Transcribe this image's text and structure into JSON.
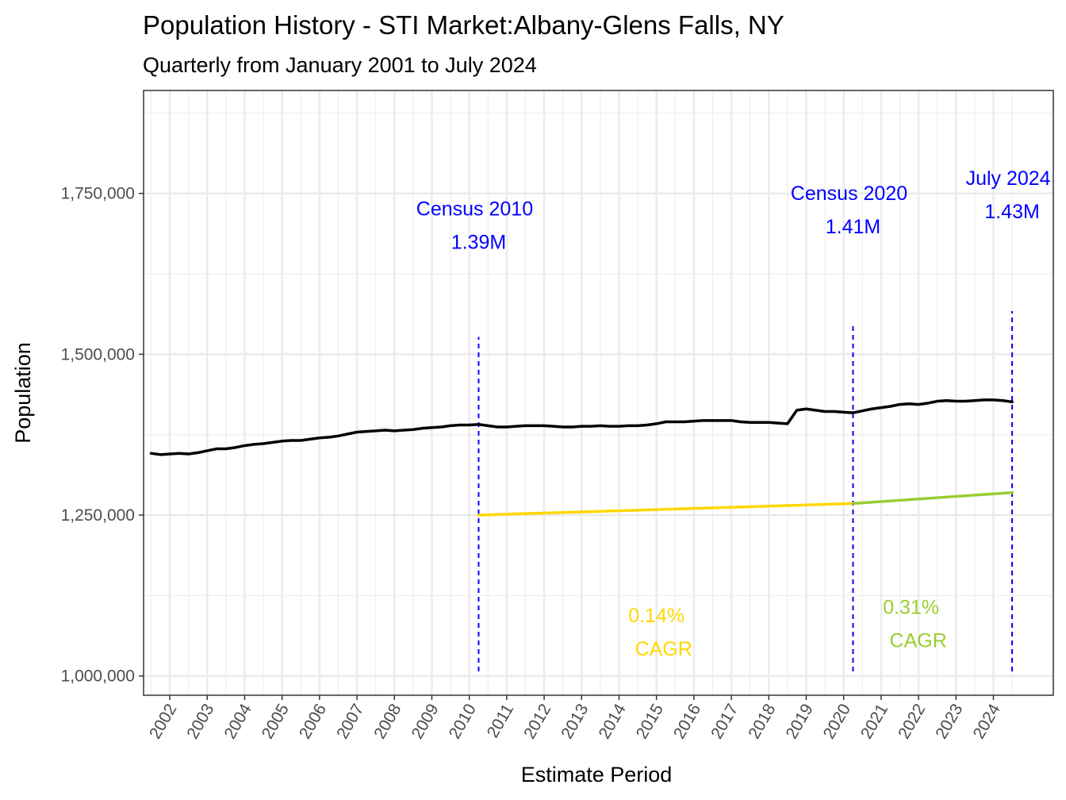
{
  "chart_data": {
    "type": "line",
    "title": "Population History - STI Market:Albany-Glens Falls, NY",
    "subtitle": "Quarterly from January 2001 to July 2024",
    "xlabel": "Estimate Period",
    "ylabel": "Population",
    "xlim": [
      2001.3,
      2025.6
    ],
    "ylim": [
      970000,
      1910000
    ],
    "x_ticks": [
      2002,
      2003,
      2004,
      2005,
      2006,
      2007,
      2008,
      2009,
      2010,
      2011,
      2012,
      2013,
      2014,
      2015,
      2016,
      2017,
      2018,
      2019,
      2020,
      2021,
      2022,
      2023,
      2024
    ],
    "x_tick_labels": [
      "2002",
      "2003",
      "2004",
      "2005",
      "2006",
      "2007",
      "2008",
      "2009",
      "2010",
      "2011",
      "2012",
      "2013",
      "2014",
      "2015",
      "2016",
      "2017",
      "2018",
      "2019",
      "2020",
      "2021",
      "2022",
      "2023",
      "2024"
    ],
    "y_ticks": [
      1000000,
      1250000,
      1500000,
      1750000
    ],
    "y_tick_labels": [
      "1,000,000",
      "1,250,000",
      "1,500,000",
      "1,750,000"
    ],
    "grid": true,
    "colors": {
      "population": "#000000",
      "census": "#0000ff",
      "cagr_2010_2020": "#ffd700",
      "cagr_2020_2024": "#9acd32"
    },
    "series": [
      {
        "x": [
          2001.5,
          2001.75,
          2002.0,
          2002.25,
          2002.5,
          2002.75,
          2003.0,
          2003.25,
          2003.5,
          2003.75,
          2004.0,
          2004.25,
          2004.5,
          2004.75,
          2005.0,
          2005.25,
          2005.5,
          2005.75,
          2006.0,
          2006.25,
          2006.5,
          2006.75,
          2007.0,
          2007.25,
          2007.5,
          2007.75,
          2008.0,
          2008.25,
          2008.5,
          2008.75,
          2009.0,
          2009.25,
          2009.5,
          2009.75,
          2010.0,
          2010.25,
          2010.5,
          2010.75,
          2011.0,
          2011.25,
          2011.5,
          2011.75,
          2012.0,
          2012.25,
          2012.5,
          2012.75,
          2013.0,
          2013.25,
          2013.5,
          2013.75,
          2014.0,
          2014.25,
          2014.5,
          2014.75,
          2015.0,
          2015.25,
          2015.5,
          2015.75,
          2016.0,
          2016.25,
          2016.5,
          2016.75,
          2017.0,
          2017.25,
          2017.5,
          2017.75,
          2018.0,
          2018.25,
          2018.5,
          2018.75,
          2019.0,
          2019.25,
          2019.5,
          2019.75,
          2020.0,
          2020.25,
          2020.5,
          2020.75,
          2021.0,
          2021.25,
          2021.5,
          2021.75,
          2022.0,
          2022.25,
          2022.5,
          2022.75,
          2023.0,
          2023.25,
          2023.5,
          2023.75,
          2024.0,
          2024.25,
          2024.5
        ],
        "values": [
          1346000,
          1344000,
          1345000,
          1346000,
          1345000,
          1347000,
          1350000,
          1353000,
          1353000,
          1355000,
          1358000,
          1360000,
          1361000,
          1363000,
          1365000,
          1366000,
          1366000,
          1368000,
          1370000,
          1371000,
          1373000,
          1376000,
          1379000,
          1380000,
          1381000,
          1382000,
          1381000,
          1382000,
          1383000,
          1385000,
          1386000,
          1387000,
          1389000,
          1390000,
          1390000,
          1391000,
          1389000,
          1387000,
          1387000,
          1388000,
          1389000,
          1389000,
          1389000,
          1388000,
          1387000,
          1387000,
          1388000,
          1388000,
          1389000,
          1388000,
          1388000,
          1389000,
          1389000,
          1390000,
          1392000,
          1395000,
          1395000,
          1395000,
          1396000,
          1397000,
          1397000,
          1397000,
          1397000,
          1395000,
          1394000,
          1394000,
          1394000,
          1393000,
          1392000,
          1413000,
          1415000,
          1413000,
          1411000,
          1411000,
          1410000,
          1409000,
          1412000,
          1415000,
          1417000,
          1419000,
          1422000,
          1423000,
          1422000,
          1424000,
          1427000,
          1428000,
          1427000,
          1427000,
          1428000,
          1429000,
          1429000,
          1428000,
          1426000
        ]
      },
      {
        "x": [
          2010.25,
          2020.25
        ],
        "values": [
          1250000,
          1268000
        ]
      },
      {
        "x": [
          2020.25,
          2024.5
        ],
        "values": [
          1268000,
          1285000
        ]
      }
    ],
    "reference_lines": [
      {
        "x": 2010.25,
        "from": 1007000,
        "to": 1527000,
        "label": "Census 2010",
        "value_label": "1.39M",
        "label_y": 1716000
      },
      {
        "x": 2020.25,
        "from": 1007000,
        "to": 1547000,
        "label": "Census 2020",
        "value_label": "1.41M",
        "label_y": 1740000
      },
      {
        "x": 2024.5,
        "from": 1007000,
        "to": 1567000,
        "label": "July 2024",
        "value_label": "1.43M",
        "label_y": 1763000
      }
    ],
    "annotations": [
      {
        "x": 2015.0,
        "y": 1055000,
        "pct": "0.14%",
        "text": "CAGR",
        "color": "#ffd700"
      },
      {
        "x": 2021.8,
        "y": 1068000,
        "pct": "0.31%",
        "text": "CAGR",
        "color": "#9acd32"
      }
    ]
  }
}
